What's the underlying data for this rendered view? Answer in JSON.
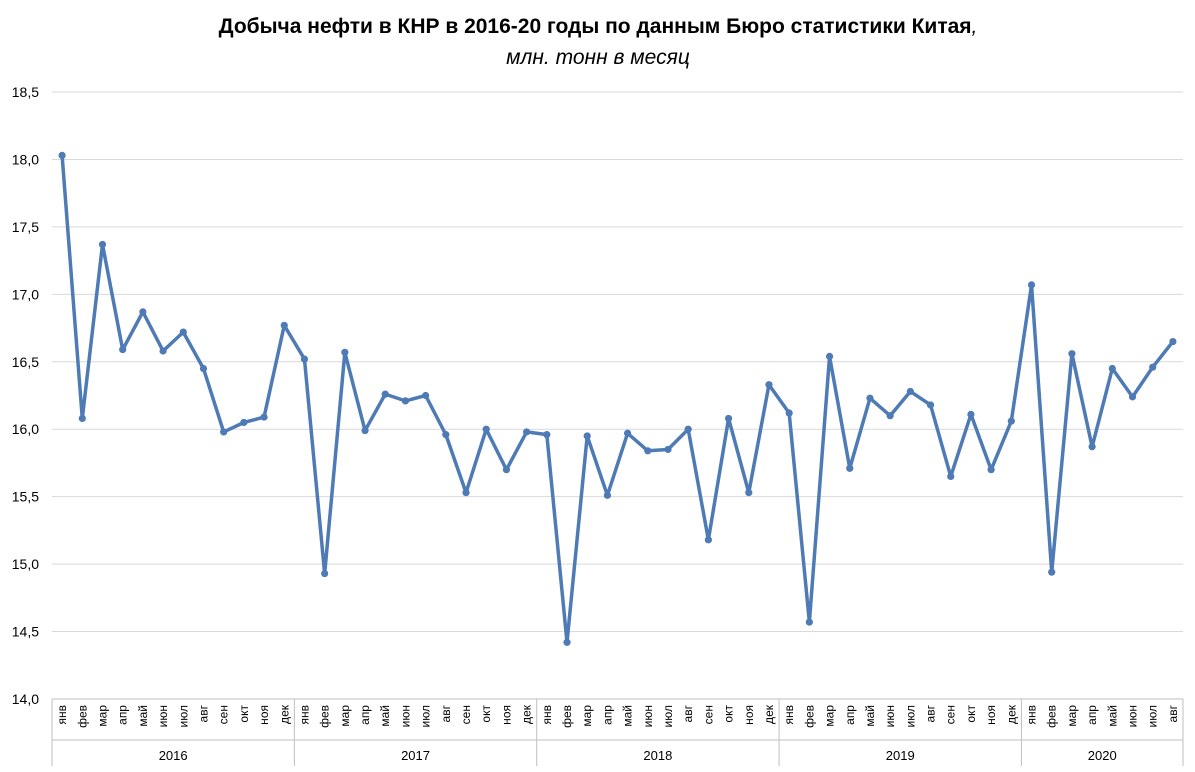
{
  "chart_data": {
    "type": "line",
    "title": "Добыча нефти в КНР в 2016-20 годы по данным Бюро статистики Китая",
    "title_suffix": ",",
    "subtitle": "млн. тонн в месяц",
    "xlabel": "",
    "ylabel": "",
    "ylim": [
      14.0,
      18.5
    ],
    "yticks": [
      "14,0",
      "14,5",
      "15,0",
      "15,5",
      "16,0",
      "16,5",
      "17,0",
      "17,5",
      "18,0",
      "18,5"
    ],
    "grid": true,
    "legend": "none",
    "colors": {
      "line": "#4E7AB5",
      "grid": "#D9D9D9",
      "axis": "#BFBFBF",
      "text": "#000000"
    },
    "years": [
      {
        "label": "2016",
        "months": [
          "янв",
          "фев",
          "мар",
          "апр",
          "май",
          "июн",
          "июл",
          "авг",
          "сен",
          "окт",
          "ноя",
          "дек"
        ]
      },
      {
        "label": "2017",
        "months": [
          "янв",
          "фев",
          "мар",
          "апр",
          "май",
          "июн",
          "июл",
          "авг",
          "сен",
          "окт",
          "ноя",
          "дек"
        ]
      },
      {
        "label": "2018",
        "months": [
          "янв",
          "фев",
          "мар",
          "апр",
          "май",
          "июн",
          "июл",
          "авг",
          "сен",
          "окт",
          "ноя",
          "дек"
        ]
      },
      {
        "label": "2019",
        "months": [
          "янв",
          "фев",
          "мар",
          "апр",
          "май",
          "июн",
          "июл",
          "авг",
          "сен",
          "окт",
          "ноя",
          "дек"
        ]
      },
      {
        "label": "2020",
        "months": [
          "янв",
          "фев",
          "мар",
          "апр",
          "май",
          "июн",
          "июл",
          "авг"
        ]
      }
    ],
    "series": [
      {
        "name": "Добыча нефти",
        "values": [
          18.03,
          16.08,
          17.37,
          16.59,
          16.87,
          16.58,
          16.72,
          16.45,
          15.98,
          16.05,
          16.09,
          16.77,
          16.52,
          14.93,
          16.57,
          15.99,
          16.26,
          16.21,
          16.25,
          15.96,
          15.53,
          16.0,
          15.7,
          15.98,
          15.96,
          14.42,
          15.95,
          15.51,
          15.97,
          15.84,
          15.85,
          16.0,
          15.18,
          16.08,
          15.53,
          16.33,
          16.12,
          14.57,
          16.54,
          15.71,
          16.23,
          16.1,
          16.28,
          16.18,
          15.65,
          16.11,
          15.7,
          16.06,
          17.07,
          14.94,
          16.56,
          15.87,
          16.45,
          16.24,
          16.46,
          16.65
        ]
      }
    ]
  }
}
